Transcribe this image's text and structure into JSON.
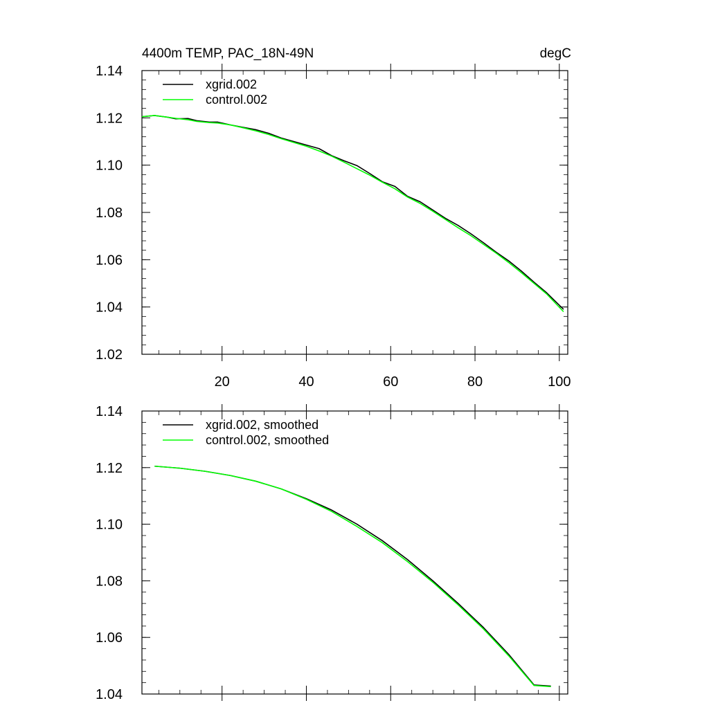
{
  "chart_data": [
    {
      "type": "line",
      "title": "4400m TEMP, PAC_18N-49N",
      "units": "degC",
      "xlim": [
        1,
        102
      ],
      "ylim": [
        1.02,
        1.14
      ],
      "x_ticks": [
        "20",
        "40",
        "60",
        "80",
        "100"
      ],
      "y_ticks": [
        "1.02",
        "1.04",
        "1.06",
        "1.08",
        "1.10",
        "1.12",
        "1.14"
      ],
      "legend_position": "top-left",
      "series": [
        {
          "name": "xgrid.002",
          "color": "#000000",
          "points": [
            [
              1,
              1.1205
            ],
            [
              4,
              1.121
            ],
            [
              7,
              1.1203
            ],
            [
              9,
              1.1196
            ],
            [
              12,
              1.1197
            ],
            [
              14,
              1.1188
            ],
            [
              17,
              1.1182
            ],
            [
              19,
              1.1182
            ],
            [
              22,
              1.117
            ],
            [
              25,
              1.116
            ],
            [
              28,
              1.115
            ],
            [
              31,
              1.1135
            ],
            [
              34,
              1.1115
            ],
            [
              37,
              1.11
            ],
            [
              40,
              1.1085
            ],
            [
              43,
              1.107
            ],
            [
              46,
              1.104
            ],
            [
              49,
              1.1018
            ],
            [
              52,
              1.0998
            ],
            [
              55,
              1.0965
            ],
            [
              58,
              1.093
            ],
            [
              61,
              1.091
            ],
            [
              64,
              1.0868
            ],
            [
              67,
              1.0845
            ],
            [
              70,
              1.081
            ],
            [
              73,
              1.0775
            ],
            [
              76,
              1.0745
            ],
            [
              79,
              1.071
            ],
            [
              82,
              1.0672
            ],
            [
              85,
              1.0632
            ],
            [
              88,
              1.0595
            ],
            [
              91,
              1.0552
            ],
            [
              94,
              1.0505
            ],
            [
              97,
              1.046
            ],
            [
              101,
              1.039
            ]
          ]
        },
        {
          "name": "control.002",
          "color": "#00ff00",
          "points": [
            [
              1,
              1.1205
            ],
            [
              4,
              1.121
            ],
            [
              7,
              1.1203
            ],
            [
              9,
              1.1198
            ],
            [
              12,
              1.1192
            ],
            [
              14,
              1.1185
            ],
            [
              17,
              1.118
            ],
            [
              19,
              1.1178
            ],
            [
              22,
              1.117
            ],
            [
              25,
              1.1158
            ],
            [
              28,
              1.1145
            ],
            [
              31,
              1.113
            ],
            [
              34,
              1.1112
            ],
            [
              37,
              1.1096
            ],
            [
              40,
              1.108
            ],
            [
              43,
              1.106
            ],
            [
              46,
              1.1038
            ],
            [
              49,
              1.1012
            ],
            [
              52,
              1.0985
            ],
            [
              55,
              1.0958
            ],
            [
              58,
              1.0928
            ],
            [
              61,
              1.09
            ],
            [
              64,
              1.0865
            ],
            [
              67,
              1.0838
            ],
            [
              70,
              1.0805
            ],
            [
              73,
              1.077
            ],
            [
              76,
              1.0735
            ],
            [
              79,
              1.0702
            ],
            [
              82,
              1.0665
            ],
            [
              85,
              1.0628
            ],
            [
              88,
              1.0588
            ],
            [
              91,
              1.0545
            ],
            [
              94,
              1.05
            ],
            [
              97,
              1.0455
            ],
            [
              101,
              1.038
            ]
          ]
        }
      ]
    },
    {
      "type": "line",
      "title": "",
      "xlim": [
        1,
        102
      ],
      "ylim": [
        1.04,
        1.14
      ],
      "x_ticks": [],
      "y_ticks": [
        "1.04",
        "1.06",
        "1.08",
        "1.10",
        "1.12",
        "1.14"
      ],
      "legend_position": "top-left",
      "series": [
        {
          "name": "xgrid.002, smoothed",
          "color": "#000000",
          "points": [
            [
              4,
              1.1205
            ],
            [
              10,
              1.1198
            ],
            [
              16,
              1.1187
            ],
            [
              22,
              1.1172
            ],
            [
              28,
              1.1152
            ],
            [
              34,
              1.1125
            ],
            [
              40,
              1.109
            ],
            [
              46,
              1.105
            ],
            [
              52,
              1.1
            ],
            [
              58,
              1.0942
            ],
            [
              64,
              1.0875
            ],
            [
              70,
              1.08
            ],
            [
              76,
              1.072
            ],
            [
              82,
              1.0635
            ],
            [
              88,
              1.054
            ],
            [
              94,
              1.0432
            ],
            [
              98,
              1.0428
            ]
          ]
        },
        {
          "name": "control.002, smoothed",
          "color": "#00ff00",
          "points": [
            [
              4,
              1.1205
            ],
            [
              10,
              1.1198
            ],
            [
              16,
              1.1187
            ],
            [
              22,
              1.1172
            ],
            [
              28,
              1.1152
            ],
            [
              34,
              1.1125
            ],
            [
              40,
              1.1088
            ],
            [
              46,
              1.1045
            ],
            [
              52,
              1.0992
            ],
            [
              58,
              1.0935
            ],
            [
              64,
              1.0868
            ],
            [
              70,
              1.0795
            ],
            [
              76,
              1.0715
            ],
            [
              82,
              1.063
            ],
            [
              88,
              1.0535
            ],
            [
              94,
              1.043
            ],
            [
              98,
              1.0426
            ]
          ]
        }
      ]
    }
  ]
}
